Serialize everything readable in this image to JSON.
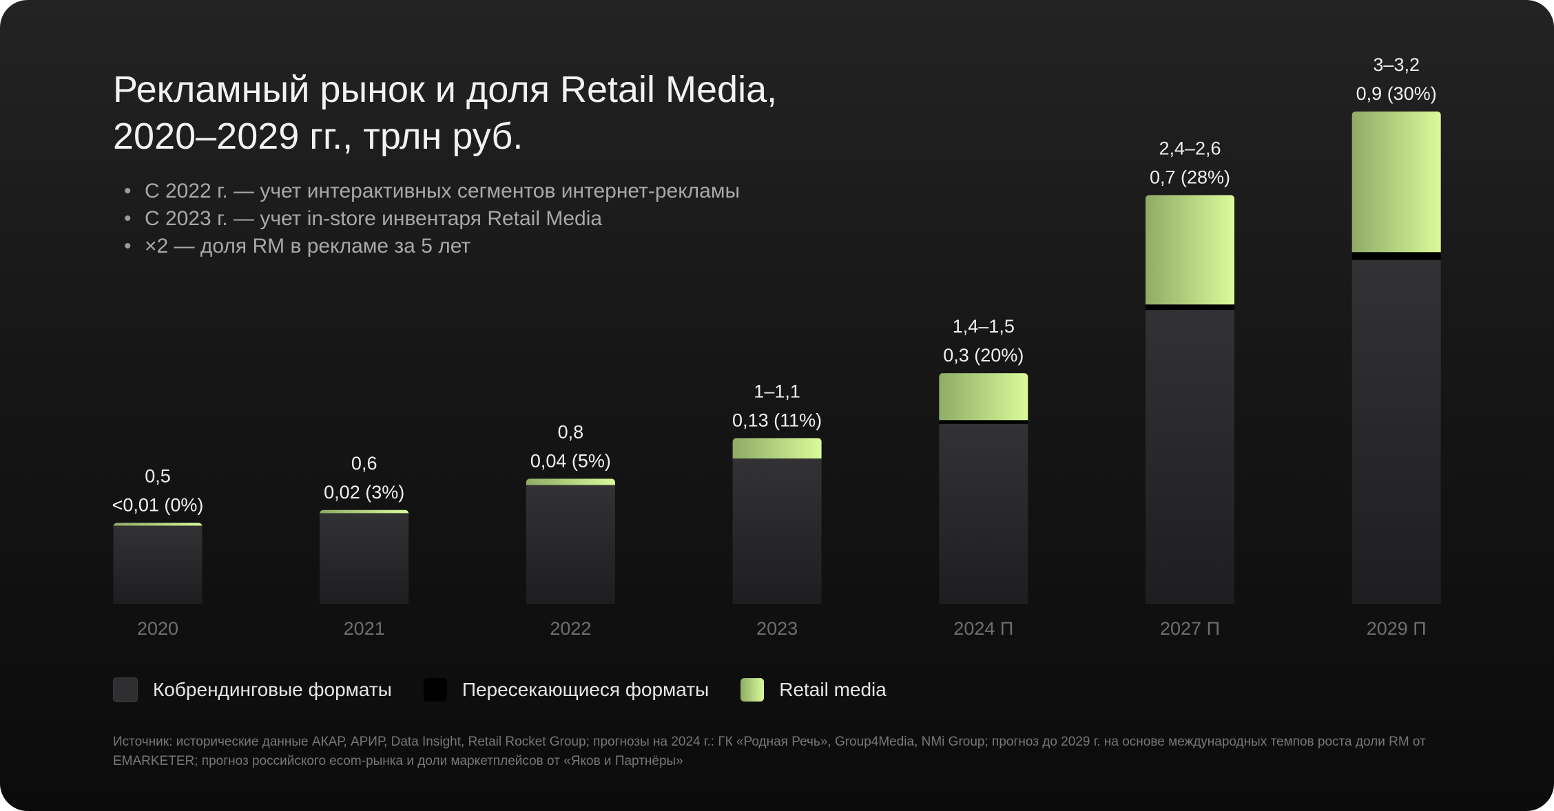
{
  "title_lines": [
    "Рекламный рынок и доля Retail Media,",
    "2020–2029 гг., трлн руб."
  ],
  "bullets": [
    "С 2022 г. — учет интерактивных сегментов интернет-рекламы",
    "С 2023 г. — учет in-store инвентаря Retail Media",
    "×2 — доля RM в рекламе за 5 лет"
  ],
  "legend": [
    {
      "label": "Кобрендинговые форматы",
      "color": "#2f2f31"
    },
    {
      "label": "Пересекающиеся форматы",
      "color": "#000000"
    },
    {
      "label": "Retail media",
      "color": "#c9ec8e"
    }
  ],
  "source": "Источник: исторические данные АКАР, АРИР, Data Insight, Retail Rocket Group; прогнозы на 2024 г.: ГК «Родная Речь», Group4Media, NMi Group; прогноз до 2029 г. на основе международных темпов роста доли RM от EMARKETER; прогноз российского ecom-рынка и доли маркетплейсов от «Яков и Партнёры»",
  "colors": {
    "cobranding": "#2f2f31",
    "overlap": "#000000",
    "retail_media_from": "#8fab66",
    "retail_media_to": "#dbfa9a"
  },
  "chart_data": {
    "type": "bar",
    "stacked": true,
    "categories": [
      "2020",
      "2021",
      "2022",
      "2023",
      "2024 П",
      "2027 П",
      "2029 П"
    ],
    "total_labels": [
      "0,5",
      "0,6",
      "0,8",
      "1–1,1",
      "1,4–1,5",
      "2,4–2,6",
      "3–3,2"
    ],
    "rm_labels": [
      "<0,01 (0%)",
      "0,02 (3%)",
      "0,04 (5%)",
      "0,13 (11%)",
      "0,3 (20%)",
      "0,7 (28%)",
      "0,9 (30%)"
    ],
    "series": [
      {
        "name": "Кобрендинговые форматы",
        "values": [
          0.5,
          0.58,
          0.76,
          0.93,
          1.15,
          1.88,
          2.2
        ]
      },
      {
        "name": "Пересекающиеся форматы",
        "values": [
          0,
          0,
          0,
          0,
          0.025,
          0.035,
          0.05
        ]
      },
      {
        "name": "Retail media",
        "values": [
          0.005,
          0.02,
          0.04,
          0.13,
          0.3,
          0.7,
          0.9
        ]
      }
    ],
    "ylim": [
      0,
      3.2
    ],
    "legend_position": "bottom-left",
    "grid": false
  }
}
